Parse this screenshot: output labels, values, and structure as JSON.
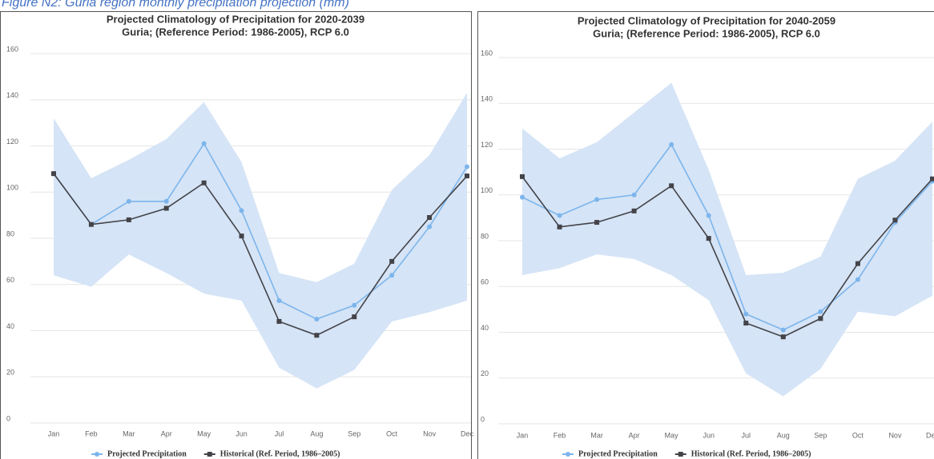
{
  "caption": "Figure N2: Guria region monthly precipitation projection (mm)",
  "chart_data": [
    {
      "type": "line",
      "title": "Projected Climatology of Precipitation for 2020-2039",
      "subtitle": "Guria; (Reference Period: 1986-2005), RCP 6.0",
      "categories": [
        "Jan",
        "Feb",
        "Mar",
        "Apr",
        "May",
        "Jun",
        "Jul",
        "Aug",
        "Sep",
        "Oct",
        "Nov",
        "Dec"
      ],
      "series": [
        {
          "name": "Projected Precipitation",
          "color": "#7cb5ec",
          "values": [
            108,
            86,
            96,
            96,
            121,
            92,
            53,
            45,
            51,
            64,
            85,
            111
          ]
        },
        {
          "name": "Historical (Ref. Period, 1986–2005)",
          "color": "#434348",
          "values": [
            108,
            86,
            88,
            93,
            104,
            81,
            44,
            38,
            46,
            70,
            89,
            107
          ]
        }
      ],
      "band": {
        "color": "#d5e4f6",
        "lower": [
          64,
          59,
          73,
          65,
          56,
          53,
          24,
          15,
          23,
          44,
          48,
          53
        ],
        "upper": [
          132,
          106,
          114,
          123,
          139,
          113,
          65,
          61,
          69,
          101,
          116,
          143
        ]
      },
      "ylim": [
        0,
        160
      ],
      "yticks": [
        0,
        20,
        40,
        60,
        80,
        100,
        120,
        140,
        160
      ],
      "grid": true
    },
    {
      "type": "line",
      "title": "Projected Climatology of Precipitation for 2040-2059",
      "subtitle": "Guria; (Reference Period: 1986-2005), RCP 6.0",
      "categories": [
        "Jan",
        "Feb",
        "Mar",
        "Apr",
        "May",
        "Jun",
        "Jul",
        "Aug",
        "Sep",
        "Oct",
        "Nov",
        "Dec"
      ],
      "series": [
        {
          "name": "Projected Precipitation",
          "color": "#7cb5ec",
          "values": [
            99,
            91,
            98,
            100,
            122,
            91,
            48,
            41,
            49,
            63,
            88,
            106
          ]
        },
        {
          "name": "Historical (Ref. Period, 1986–2005)",
          "color": "#434348",
          "values": [
            108,
            86,
            88,
            93,
            104,
            81,
            44,
            38,
            46,
            70,
            89,
            107
          ]
        }
      ],
      "band": {
        "color": "#d5e4f6",
        "lower": [
          65,
          68,
          74,
          72,
          65,
          54,
          22,
          12,
          24,
          49,
          47,
          56
        ],
        "upper": [
          129,
          116,
          123,
          136,
          149,
          111,
          65,
          66,
          73,
          107,
          115,
          132
        ]
      },
      "ylim": [
        0,
        160
      ],
      "yticks": [
        0,
        20,
        40,
        60,
        80,
        100,
        120,
        140,
        160
      ],
      "grid": true
    }
  ]
}
